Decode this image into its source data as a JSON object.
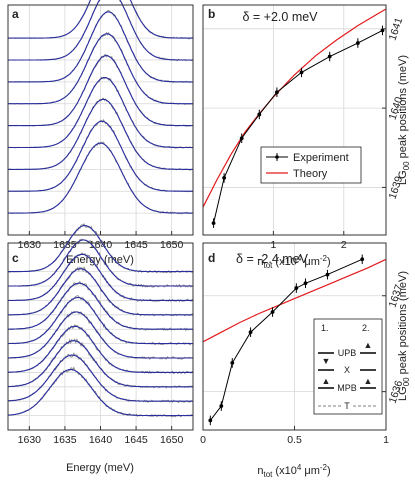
{
  "colors": {
    "spectrum": "#8c8c8c",
    "fit": "#2b2f9e",
    "experiment": "#000000",
    "theory": "#e41a1c",
    "grid": "#d8d8d8",
    "axis": "#333333"
  },
  "chart_data": [
    {
      "panel": "a",
      "type": "line",
      "xlabel": "Energy (meV)",
      "ylabel": "",
      "xlim": [
        1627,
        1653
      ],
      "xticks": [
        1630,
        1635,
        1640,
        1645,
        1650
      ],
      "grid": true,
      "traces": [
        {
          "center": 1641.4,
          "width": 2.55
        },
        {
          "center": 1641.3,
          "width": 2.6
        },
        {
          "center": 1641.1,
          "width": 2.6
        },
        {
          "center": 1640.9,
          "width": 2.7
        },
        {
          "center": 1640.8,
          "width": 2.7
        },
        {
          "center": 1640.6,
          "width": 2.75
        },
        {
          "center": 1640.4,
          "width": 2.8
        },
        {
          "center": 1640.2,
          "width": 2.8
        },
        {
          "center": 1640.0,
          "width": 2.9
        }
      ]
    },
    {
      "panel": "b",
      "type": "line",
      "annotation": "δ = +2.0 meV",
      "xlabel": "n_tot (x10⁴ μm⁻²)",
      "ylabel": "LG₀₀ peak positions (meV)",
      "xlim": [
        0,
        2.6
      ],
      "ylim": [
        1638.4,
        1641.3
      ],
      "xticks": [
        1,
        2
      ],
      "yticks": [
        1639,
        1640,
        1641
      ],
      "legend": "bottom-right",
      "grid": true,
      "series": [
        {
          "name": "Experiment",
          "x": [
            0.15,
            0.3,
            0.55,
            0.8,
            1.05,
            1.4,
            1.8,
            2.2,
            2.55
          ],
          "y": [
            1638.55,
            1639.12,
            1639.62,
            1639.92,
            1640.2,
            1640.45,
            1640.65,
            1640.82,
            1640.98
          ],
          "err": 0.06
        },
        {
          "name": "Theory",
          "x": [
            0.0,
            0.2,
            0.4,
            0.6,
            0.8,
            1.0,
            1.3,
            1.6,
            1.9,
            2.2,
            2.6
          ],
          "y": [
            1638.75,
            1639.1,
            1639.42,
            1639.7,
            1639.93,
            1640.14,
            1640.42,
            1640.66,
            1640.86,
            1641.04,
            1641.25
          ]
        }
      ]
    },
    {
      "panel": "c",
      "type": "line",
      "xlabel": "Energy (meV)",
      "ylabel": "",
      "xlim": [
        1627,
        1653
      ],
      "xticks": [
        1630,
        1635,
        1640,
        1645,
        1650
      ],
      "grid": true,
      "traces": [
        {
          "center": 1637.8,
          "width": 2.5
        },
        {
          "center": 1637.6,
          "width": 2.55
        },
        {
          "center": 1637.4,
          "width": 2.6
        },
        {
          "center": 1637.2,
          "width": 2.65
        },
        {
          "center": 1637.0,
          "width": 2.7
        },
        {
          "center": 1636.8,
          "width": 2.7
        },
        {
          "center": 1636.6,
          "width": 2.75
        },
        {
          "center": 1636.4,
          "width": 2.75
        },
        {
          "center": 1636.2,
          "width": 2.8
        },
        {
          "center": 1636.0,
          "width": 2.85
        },
        {
          "center": 1635.8,
          "width": 2.9
        }
      ]
    },
    {
      "panel": "d",
      "type": "line",
      "annotation": "δ = -2.4 meV",
      "xlabel": "n_tot (x10⁴ μm⁻²)",
      "ylabel": "LG₀₀ peak positions (meV)",
      "xlim": [
        0,
        1
      ],
      "ylim": [
        1635.6,
        1637.55
      ],
      "xticks": [
        0,
        0.5,
        1
      ],
      "yticks": [
        1636,
        1637
      ],
      "grid": true,
      "series": [
        {
          "name": "Experiment",
          "x": [
            0.04,
            0.1,
            0.16,
            0.26,
            0.38,
            0.51,
            0.56,
            0.68,
            0.87
          ],
          "y": [
            1635.7,
            1635.85,
            1636.3,
            1636.62,
            1636.83,
            1637.08,
            1637.13,
            1637.22,
            1637.38
          ],
          "err": 0.05
        },
        {
          "name": "Theory",
          "x": [
            0.0,
            0.1,
            0.2,
            0.3,
            0.4,
            0.5,
            0.6,
            0.7,
            0.8,
            0.9,
            1.0
          ],
          "y": [
            1636.52,
            1636.62,
            1636.72,
            1636.81,
            1636.89,
            1636.97,
            1637.05,
            1637.13,
            1637.21,
            1637.29,
            1637.38
          ]
        }
      ]
    }
  ],
  "panels": {
    "a": {
      "label": "a",
      "xlabel": "Energy (meV)",
      "xticks": [
        "1630",
        "1635",
        "1640",
        "1645",
        "1650"
      ]
    },
    "b": {
      "label": "b",
      "delta": "δ = +2.0 meV",
      "xticks": [
        "1",
        "2"
      ],
      "yticks": [
        "1639",
        "1640",
        "1641"
      ],
      "xlabel_main": "n",
      "xlabel_sub": "tot",
      "xlabel_rest": " (x10",
      "xlabel_sup1": "4",
      "xlabel_mu": " μm",
      "xlabel_sup2": "-2",
      "xlabel_end": ")",
      "ylabel_main": "LG",
      "ylabel_sub": "00",
      "ylabel_rest": " peak positions (meV)",
      "legend": {
        "experiment": "Experiment",
        "theory": "Theory"
      }
    },
    "c": {
      "label": "c",
      "xlabel": "Energy (meV)",
      "xticks": [
        "1630",
        "1635",
        "1640",
        "1645",
        "1650"
      ]
    },
    "d": {
      "label": "d",
      "delta": "δ = -2.4 meV",
      "xticks": [
        "0",
        "0.5",
        "1"
      ],
      "yticks": [
        "1636",
        "1637"
      ],
      "xlabel_main": "n",
      "xlabel_sub": "tot",
      "xlabel_rest": " (x10",
      "xlabel_sup1": "4",
      "xlabel_mu": " μm",
      "xlabel_sup2": "-2",
      "xlabel_end": ")",
      "ylabel_main": "LG",
      "ylabel_sub": "00",
      "ylabel_rest": " peak positions (meV)",
      "inset": {
        "label1": "1.",
        "label2": "2.",
        "upb": "UPB",
        "x": "X",
        "mpb": "MPB",
        "t": "T"
      }
    }
  }
}
